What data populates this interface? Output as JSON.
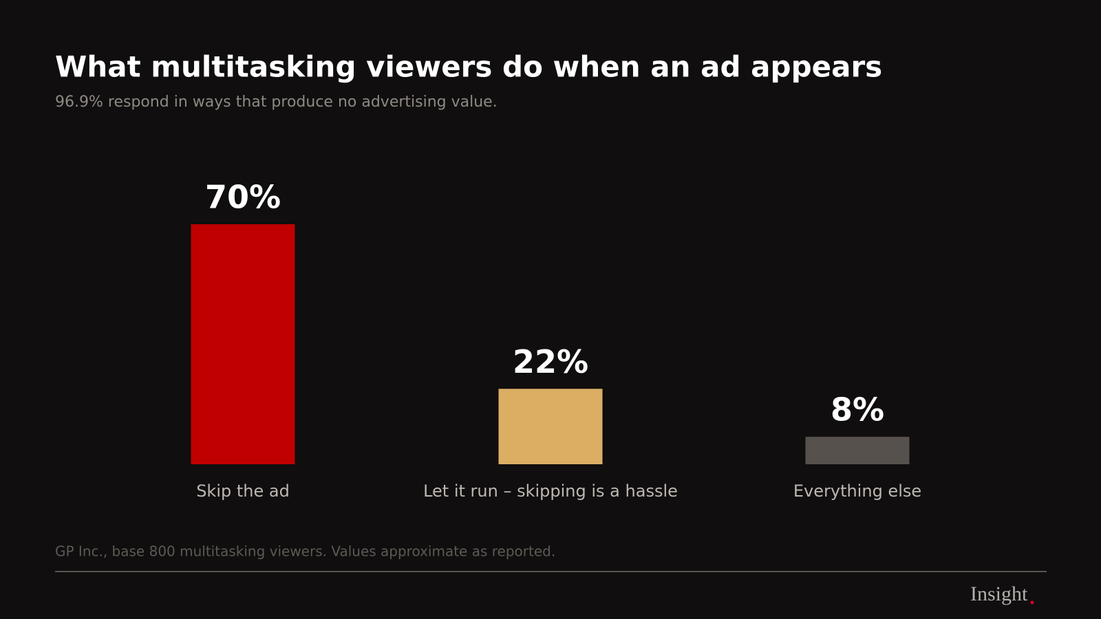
{
  "chart_data": {
    "type": "bar",
    "title": "What multitasking viewers do when an ad appears",
    "subtitle": "96.9% respond in ways that produce no advertising value.",
    "categories": [
      "Skip the ad",
      "Let it run – skipping is a hassle",
      "Everything else"
    ],
    "values": [
      70,
      22,
      8
    ],
    "value_labels": [
      "70%",
      "22%",
      "8%"
    ],
    "colors": [
      "#c00000",
      "#dcae64",
      "#57514e"
    ],
    "source": "GP Inc., base 800 multitasking viewers. Values approximate as reported.",
    "brand": "Insight"
  }
}
